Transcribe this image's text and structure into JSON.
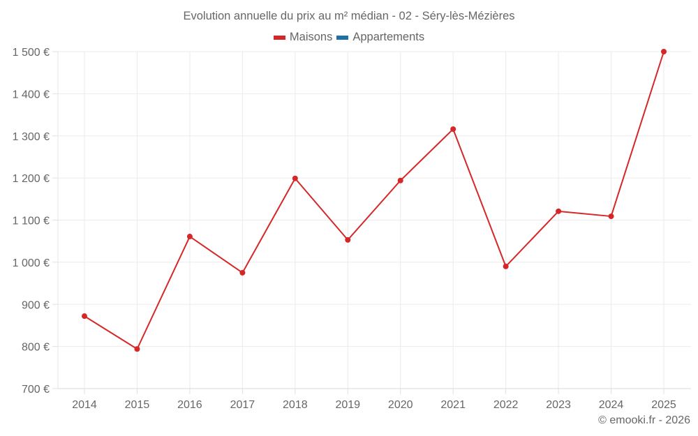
{
  "chart": {
    "title": "Evolution annuelle du prix au m² médian - 02 - Séry-lès-Mézières",
    "legend": [
      {
        "label": "Maisons",
        "color": "#d62728"
      },
      {
        "label": "Appartements",
        "color": "#1f6fa8"
      }
    ],
    "footer": "© emooki.fr - 2026"
  },
  "chart_data": {
    "type": "line",
    "title": "Evolution annuelle du prix au m² médian - 02 - Séry-lès-Mézières",
    "xlabel": "",
    "ylabel": "",
    "categories": [
      "2014",
      "2015",
      "2016",
      "2017",
      "2018",
      "2019",
      "2020",
      "2021",
      "2022",
      "2023",
      "2024",
      "2025"
    ],
    "series": [
      {
        "name": "Maisons",
        "color": "#d62728",
        "values": [
          872,
          794,
          1061,
          975,
          1199,
          1053,
          1194,
          1316,
          990,
          1121,
          1109,
          1500
        ]
      },
      {
        "name": "Appartements",
        "color": "#1f6fa8",
        "values": []
      }
    ],
    "ylim": [
      700,
      1500
    ],
    "yticks": [
      700,
      800,
      900,
      1000,
      1100,
      1200,
      1300,
      1400,
      1500
    ],
    "ytick_labels": [
      "700 €",
      "800 €",
      "900 €",
      "1 000 €",
      "1 100 €",
      "1 200 €",
      "1 300 €",
      "1 400 €",
      "1 500 €"
    ],
    "grid": true,
    "legend_position": "top"
  }
}
